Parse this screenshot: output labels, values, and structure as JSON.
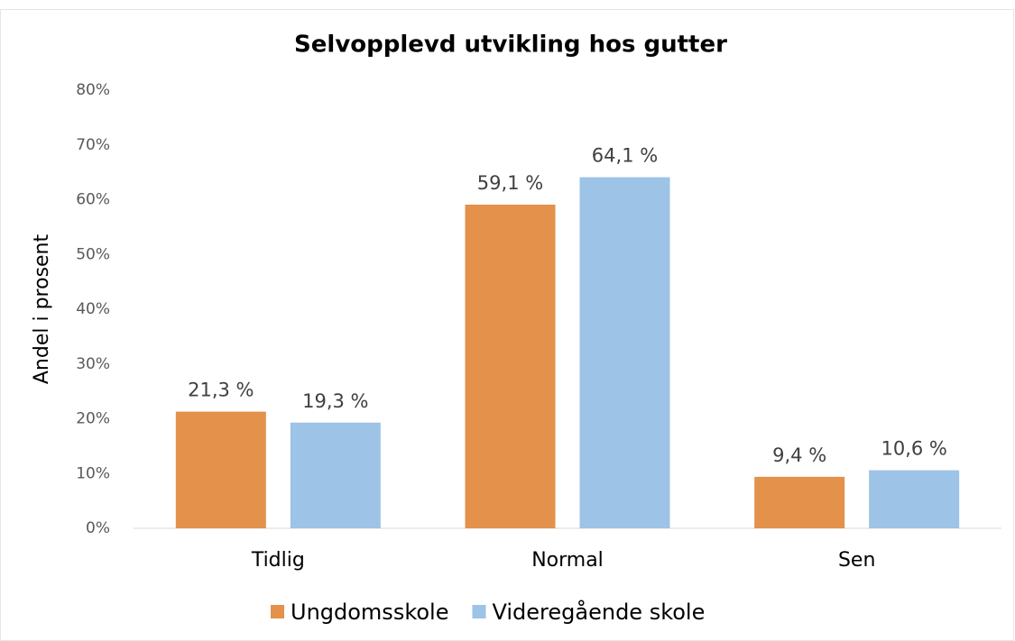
{
  "chart_data": {
    "type": "bar",
    "title": "Selvopplevd utvikling hos gutter",
    "y_label": "Andel i prosent",
    "categories": [
      "Tidlig",
      "Normal",
      "Sen"
    ],
    "series": [
      {
        "name": "Ungdomsskole",
        "color": "#e3914b",
        "values": [
          21.3,
          59.1,
          9.4
        ],
        "value_labels": [
          "21,3 %",
          "59,1 %",
          "9,4 %"
        ]
      },
      {
        "name": "Videregående skole",
        "color": "#9dc3e6",
        "values": [
          19.3,
          64.1,
          10.6
        ],
        "value_labels": [
          "19,3 %",
          "64,1 %",
          "10,6 %"
        ]
      }
    ],
    "ylim": [
      0,
      80
    ],
    "yticks": [
      {
        "value": 0,
        "label": "0%"
      },
      {
        "value": 10,
        "label": "10%"
      },
      {
        "value": 20,
        "label": "20%"
      },
      {
        "value": 30,
        "label": "30%"
      },
      {
        "value": 40,
        "label": "40%"
      },
      {
        "value": 50,
        "label": "50%"
      },
      {
        "value": 60,
        "label": "60%"
      },
      {
        "value": 70,
        "label": "70%"
      },
      {
        "value": 80,
        "label": "80%"
      }
    ],
    "grid": false,
    "legend": "bottom"
  }
}
